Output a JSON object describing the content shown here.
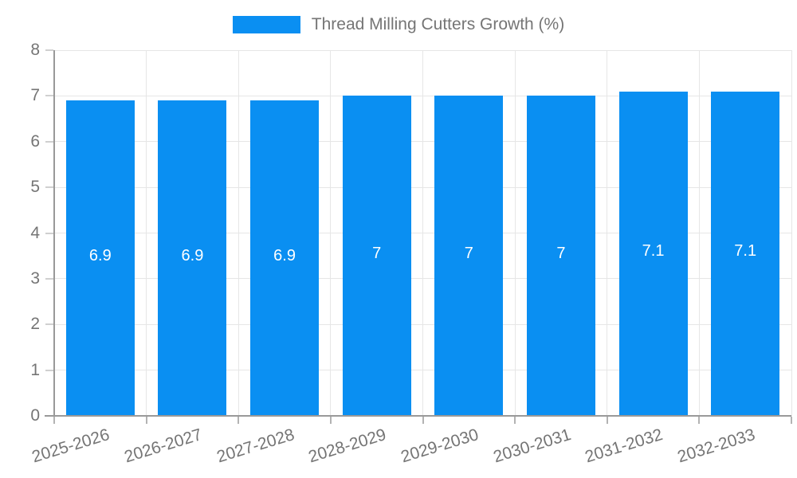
{
  "legend": {
    "label": "Thread Milling Cutters Growth (%)",
    "position": "top-center"
  },
  "chart_data": {
    "type": "bar",
    "title": "Thread Milling Cutters Growth (%)",
    "categories": [
      "2025-2026",
      "2026-2027",
      "2027-2028",
      "2028-2029",
      "2029-2030",
      "2030-2031",
      "2031-2032",
      "2032-2033"
    ],
    "values": [
      6.9,
      6.9,
      6.9,
      7,
      7,
      7,
      7.1,
      7.1
    ],
    "value_labels": [
      "6.9",
      "6.9",
      "6.9",
      "7",
      "7",
      "7",
      "7.1",
      "7.1"
    ],
    "series": [
      {
        "name": "Thread Milling Cutters Growth (%)",
        "values": [
          6.9,
          6.9,
          6.9,
          7,
          7,
          7,
          7.1,
          7.1
        ]
      }
    ],
    "xlabel": "",
    "ylabel": "",
    "ylim": [
      0,
      8
    ],
    "yticks": [
      0,
      1,
      2,
      3,
      4,
      5,
      6,
      7,
      8
    ],
    "grid": true,
    "legend_position": "top",
    "x_tick_rotation_deg": -17,
    "colors": {
      "bar": "#0a8ff2",
      "bar_label": "#ffffff",
      "axis_line": "#999999",
      "grid_line": "#e6e6e6",
      "y_tick_mark": "#d0d0d0",
      "x_tick_mark": "#b3b3b3",
      "tick_text": "#757575",
      "legend_text": "#757575"
    }
  }
}
